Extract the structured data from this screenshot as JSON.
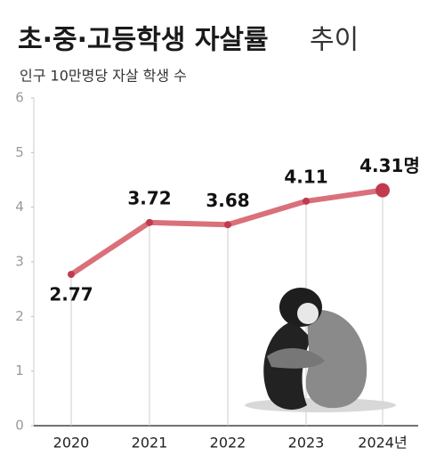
{
  "chart_data": {
    "type": "line",
    "title_bold": "초·중·고등학생 자살률",
    "title_light": "추이",
    "subtitle": "인구 10만명당 자살 학생 수",
    "categories": [
      "2020",
      "2021",
      "2022",
      "2023",
      "2024년"
    ],
    "values": [
      2.77,
      3.72,
      3.68,
      4.11,
      4.31
    ],
    "value_labels": [
      "2.77",
      "3.72",
      "3.68",
      "4.11",
      "4.31명"
    ],
    "color": "#d9707a",
    "highlight_color": "#c23a4f",
    "ylim": [
      0,
      6
    ],
    "yticks": [
      0,
      1,
      2,
      3,
      4,
      5,
      6
    ]
  }
}
